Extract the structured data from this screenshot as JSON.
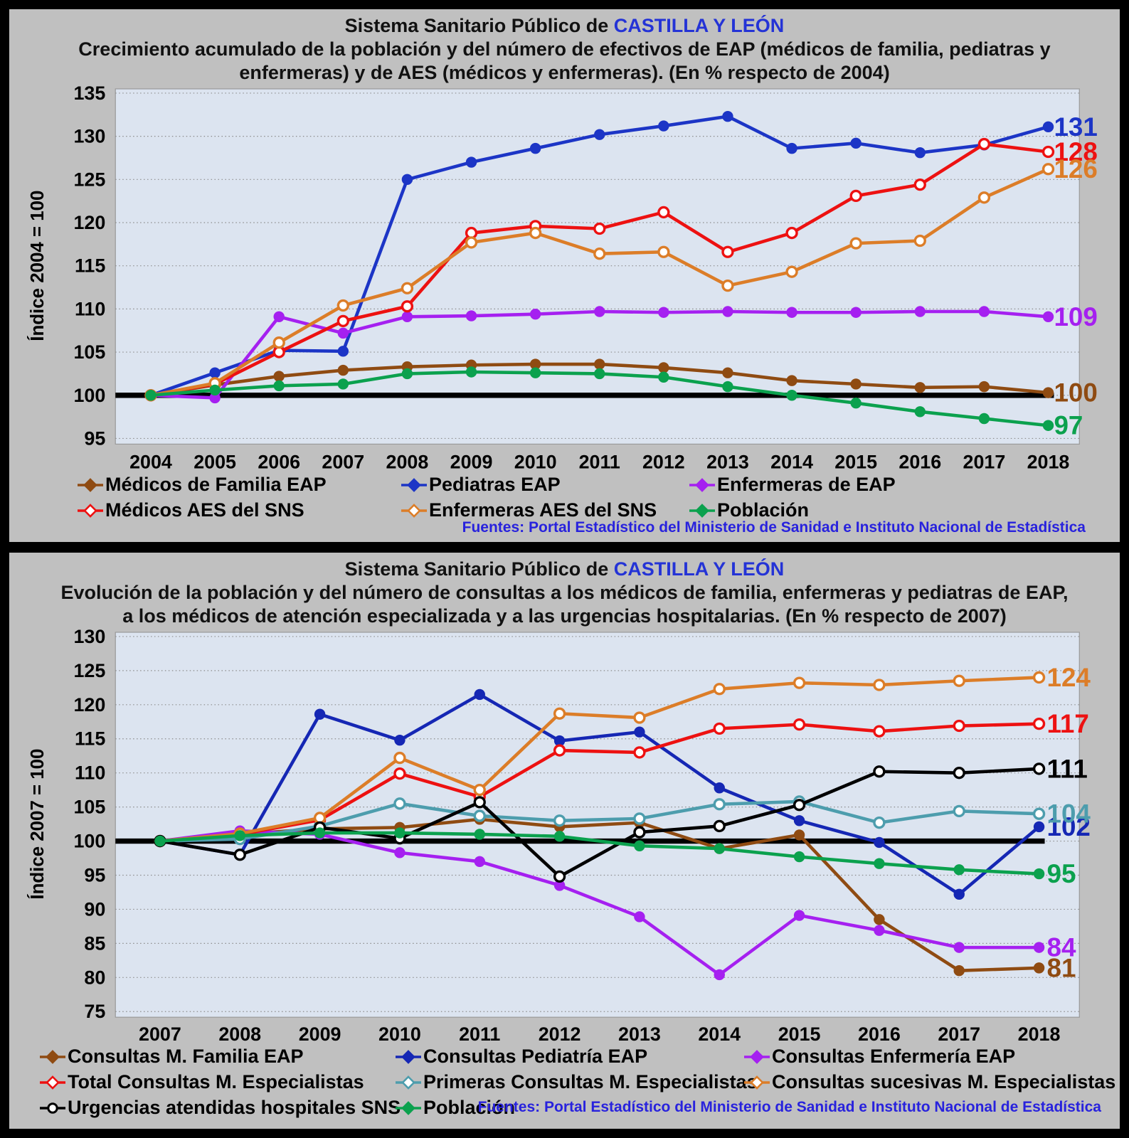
{
  "colors": {
    "panel_bg": "#c0c0c0",
    "plot_bg": "#dce4f0",
    "plot_border": "#9a9a9a",
    "grid": "#8c8c8c",
    "baseline": "#000000",
    "title_text": "#111111",
    "region_blue": "#2433d6",
    "source_blue": "#2822dd",
    "axis_text": "#000000"
  },
  "panels": [
    {
      "title_prefix": "Sistema Sanitario Público de ",
      "title_region": "CASTILLA Y LEÓN",
      "subtitle_lines": [
        "Crecimiento acumulado de la población y del número de efectivos de EAP (médicos de familia, pediatras y",
        "enfermeras) y de AES (médicos y enfermeras). (En % respecto de 2004)"
      ],
      "source_label": "Fuentes:  Portal Estadístico del Ministerio de Sanidad e Instituto Nacional de Estadística"
    },
    {
      "title_prefix": "Sistema Sanitario Público de ",
      "title_region": "CASTILLA Y LEÓN",
      "subtitle_lines": [
        "Evolución de la población y del número de consultas a los médicos de familia, enfermeras y pediatras de EAP,",
        "a los médicos de atención especializada y a las urgencias hospitalarias. (En % respecto de 2007)"
      ],
      "source_label": "Fuentes: Portal Estadístico del Ministerio de Sanidad e Instituto Nacional de Estadística"
    }
  ],
  "chart_data": [
    {
      "type": "line",
      "title": "Crecimiento acumulado de la población y del número de efectivos de EAP y de AES. (En % respecto de 2004)",
      "ylabel": "Índice 2004 = 100",
      "ylim": [
        95,
        135
      ],
      "ytick_step": 5,
      "baseline": 100,
      "grid": true,
      "legend_position": "bottom",
      "x": [
        2004,
        2005,
        2006,
        2007,
        2008,
        2009,
        2010,
        2011,
        2012,
        2013,
        2014,
        2015,
        2016,
        2017,
        2018
      ],
      "series": [
        {
          "name": "Médicos de Familia EAP",
          "color": "#8f4b12",
          "marker": "filled",
          "legend_marker": "diamond-filled",
          "end_label": "100",
          "values": [
            100,
            101.2,
            102.2,
            102.9,
            103.3,
            103.5,
            103.6,
            103.6,
            103.2,
            102.6,
            101.7,
            101.3,
            100.9,
            101.0,
            100.3
          ]
        },
        {
          "name": "Pediatras EAP",
          "color": "#1c35c6",
          "marker": "filled",
          "legend_marker": "diamond-filled",
          "end_label": "131",
          "values": [
            100,
            102.6,
            105.2,
            105.1,
            125.0,
            127.0,
            128.6,
            130.2,
            131.2,
            132.3,
            128.6,
            129.2,
            128.1,
            129.0,
            131.1
          ]
        },
        {
          "name": "Enfermeras de EAP",
          "color": "#a520f0",
          "marker": "filled",
          "legend_marker": "diamond-filled",
          "end_label": "109",
          "values": [
            100,
            99.7,
            109.1,
            107.2,
            109.1,
            109.2,
            109.4,
            109.7,
            109.6,
            109.7,
            109.6,
            109.6,
            109.7,
            109.7,
            109.1
          ]
        },
        {
          "name": "Médicos AES del SNS",
          "color": "#ed1111",
          "marker": "open",
          "legend_marker": "diamond-open",
          "end_label": "128",
          "values": [
            100,
            101.3,
            105.0,
            108.6,
            110.3,
            118.8,
            119.6,
            119.3,
            121.2,
            116.6,
            118.8,
            123.1,
            124.4,
            129.1,
            128.2
          ]
        },
        {
          "name": "Enfermeras AES del SNS",
          "color": "#dc7d28",
          "marker": "open",
          "legend_marker": "diamond-open",
          "end_label": "126",
          "values": [
            100,
            101.4,
            106.1,
            110.4,
            112.4,
            117.7,
            118.8,
            116.4,
            116.6,
            112.7,
            114.3,
            117.6,
            117.9,
            122.9,
            126.2
          ]
        },
        {
          "name": "Población",
          "color": "#0ba14e",
          "marker": "filled",
          "legend_marker": "diamond-filled",
          "end_label": "97",
          "values": [
            100,
            100.6,
            101.1,
            101.3,
            102.5,
            102.7,
            102.6,
            102.5,
            102.1,
            101.0,
            100.0,
            99.1,
            98.1,
            97.3,
            96.5
          ]
        }
      ],
      "legend_rows": [
        [
          0,
          1,
          2
        ],
        [
          3,
          4,
          5
        ]
      ]
    },
    {
      "type": "line",
      "title": "Evolución de la población y del número de consultas. (En % respecto de 2007)",
      "ylabel": "Índice 2007 = 100",
      "ylim": [
        75,
        130
      ],
      "ytick_step": 5,
      "baseline": 100,
      "grid": true,
      "legend_position": "bottom",
      "x": [
        2007,
        2008,
        2009,
        2010,
        2011,
        2012,
        2013,
        2014,
        2015,
        2016,
        2017,
        2018
      ],
      "series": [
        {
          "name": "Consultas M. Familia EAP",
          "color": "#8f4b12",
          "marker": "filled",
          "legend_marker": "diamond-filled",
          "end_label": "81",
          "values": [
            100,
            101.0,
            101.8,
            102.0,
            103.2,
            102.1,
            102.7,
            98.9,
            100.9,
            88.5,
            81.0,
            81.4
          ]
        },
        {
          "name": "Consultas Pediatría EAP",
          "color": "#1527b4",
          "marker": "filled",
          "legend_marker": "diamond-filled",
          "end_label": "102",
          "values": [
            100,
            98.0,
            118.6,
            114.8,
            121.5,
            114.7,
            116.0,
            107.8,
            103.0,
            99.8,
            92.2,
            102.1
          ]
        },
        {
          "name": "Consultas Enfermería EAP",
          "color": "#a520f0",
          "marker": "filled",
          "legend_marker": "diamond-filled",
          "end_label": "84",
          "values": [
            100,
            101.5,
            101.0,
            98.3,
            97.0,
            93.5,
            88.9,
            80.4,
            89.1,
            86.9,
            84.4,
            84.4
          ]
        },
        {
          "name": "Total Consultas M. Especialistas",
          "color": "#ed1111",
          "marker": "open",
          "legend_marker": "diamond-open",
          "end_label": "117",
          "values": [
            100,
            101.0,
            103.1,
            109.9,
            106.5,
            113.3,
            113.0,
            116.5,
            117.1,
            116.1,
            116.9,
            117.2
          ]
        },
        {
          "name": "Primeras Consultas M. Especialistas",
          "color": "#4d9dad",
          "marker": "open",
          "legend_marker": "diamond-open",
          "end_label": "104",
          "values": [
            100,
            100.3,
            102.2,
            105.5,
            103.7,
            103.0,
            103.3,
            105.4,
            105.8,
            102.7,
            104.4,
            104.0
          ]
        },
        {
          "name": "Consultas sucesivas M. Especialistas",
          "color": "#dc7d28",
          "marker": "open",
          "legend_marker": "diamond-open",
          "end_label": "124",
          "values": [
            100,
            101.1,
            103.4,
            112.2,
            107.5,
            118.7,
            118.1,
            122.3,
            123.2,
            122.9,
            123.5,
            124.0
          ]
        },
        {
          "name": "Urgencias atendidas hospitales SNS",
          "color": "#000000",
          "marker": "open",
          "legend_marker": "circle-open",
          "end_label": "111",
          "values": [
            100,
            98.0,
            102.0,
            100.4,
            105.7,
            94.8,
            101.3,
            102.2,
            105.3,
            110.2,
            110.0,
            110.6
          ]
        },
        {
          "name": "Población",
          "color": "#0ba14e",
          "marker": "filled",
          "legend_marker": "diamond-filled",
          "end_label": "95",
          "values": [
            100,
            100.8,
            101.2,
            101.2,
            101.0,
            100.7,
            99.3,
            98.9,
            97.7,
            96.7,
            95.8,
            95.2
          ]
        }
      ],
      "legend_rows": [
        [
          0,
          1,
          2
        ],
        [
          3,
          4,
          5
        ],
        [
          6,
          7
        ]
      ]
    }
  ]
}
